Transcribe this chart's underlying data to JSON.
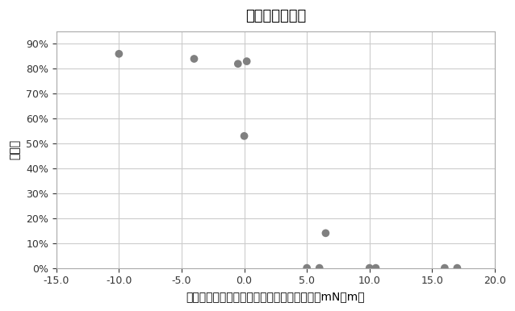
{
  "title": "潜り率（直後）",
  "xlabel": "下層の静的表面張力ー上層の静的表面張力（mN／m）",
  "ylabel": "潜り率",
  "xlim": [
    -15.0,
    20.0
  ],
  "ylim": [
    0.0,
    0.95
  ],
  "xticks": [
    -15.0,
    -10.0,
    -5.0,
    0.0,
    5.0,
    10.0,
    15.0,
    20.0
  ],
  "yticks": [
    0.0,
    0.1,
    0.2,
    0.3,
    0.4,
    0.5,
    0.6,
    0.7,
    0.8,
    0.9
  ],
  "x_data": [
    -10.0,
    -4.0,
    -0.5,
    0.2,
    0.0,
    5.0,
    6.0,
    6.5,
    10.0,
    10.5,
    16.0,
    17.0
  ],
  "y_data": [
    0.86,
    0.84,
    0.82,
    0.83,
    0.53,
    0.0,
    0.0,
    0.14,
    0.0,
    0.0,
    0.0,
    0.0
  ],
  "marker_color": "#808080",
  "marker_size": 7,
  "background_color": "#ffffff",
  "grid_color": "#cccccc",
  "title_fontsize": 13,
  "label_fontsize": 10,
  "tick_fontsize": 9
}
